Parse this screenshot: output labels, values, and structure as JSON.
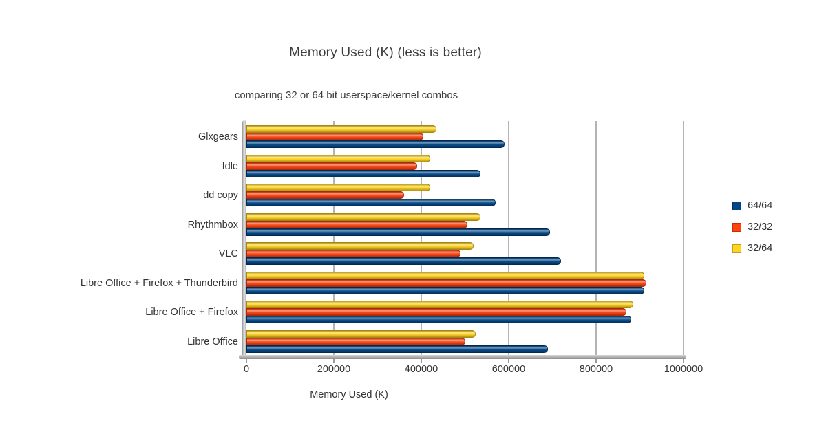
{
  "chart_data": {
    "type": "bar",
    "orientation": "horizontal",
    "title": "Memory Used (K) (less is better)",
    "subtitle": "comparing 32 or 64 bit userspace/kernel combos",
    "xlabel": "Memory Used (K)",
    "xlim": [
      0,
      1000000
    ],
    "x_ticks": [
      0,
      200000,
      400000,
      600000,
      800000,
      1000000
    ],
    "x_tick_labels": [
      "0",
      "200000",
      "400000",
      "600000",
      "800000",
      "1000000"
    ],
    "grid": true,
    "legend_position": "right",
    "bar_order_top_to_bottom": [
      "32/64",
      "32/32",
      "64/64"
    ],
    "categories": [
      "Glxgears",
      "Idle",
      "dd copy",
      "Rhythmbox",
      "VLC",
      "Libre Office + Firefox + Thunderbird",
      "Libre Office + Firefox",
      "Libre Office"
    ],
    "series": [
      {
        "name": "64/64",
        "color": "#004586",
        "edge_color": "#002a52",
        "values": [
          590000,
          535000,
          570000,
          695000,
          720000,
          910000,
          880000,
          690000
        ]
      },
      {
        "name": "32/32",
        "color": "#FF420E",
        "edge_color": "#a82a08",
        "values": [
          405000,
          390000,
          360000,
          505000,
          490000,
          915000,
          870000,
          500000
        ]
      },
      {
        "name": "32/64",
        "color": "#FFD320",
        "edge_color": "#a8870f",
        "values": [
          435000,
          420000,
          420000,
          535000,
          520000,
          910000,
          885000,
          525000
        ]
      }
    ]
  }
}
